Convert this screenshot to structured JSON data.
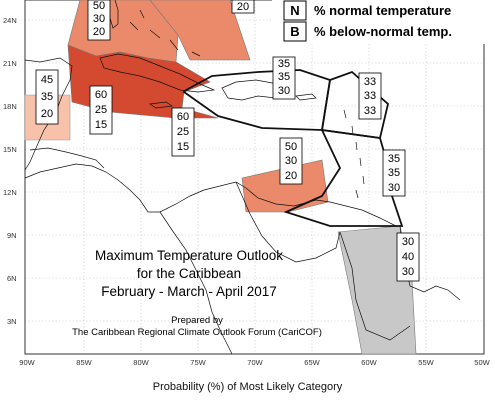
{
  "title": {
    "line1": "Maximum Temperature Outlook",
    "line2": "for the Caribbean",
    "line3": "February - March - April 2017"
  },
  "credit": {
    "line1": "Prepared by",
    "line2": "The Caribbean Regional Climate Outlook Forum (CariCOF)"
  },
  "footer_label": "Probability (%) of Most Likely Category",
  "legend": {
    "normal": {
      "key": "N",
      "text": "% normal temperature"
    },
    "below": {
      "key": "B",
      "text": "% below-normal temp."
    }
  },
  "latitude_labels": [
    "24N",
    "21N",
    "18N",
    "15N",
    "12N",
    "9N",
    "6N",
    "3N"
  ],
  "longitude_labels": [
    "90W",
    "85W",
    "80W",
    "75W",
    "70W",
    "65W",
    "60W",
    "55W",
    "50W"
  ],
  "colors": {
    "above_light": "#f7c2a9",
    "above_medium": "#ea8a6a",
    "above_strong": "#de6a4a",
    "above_darkest": "#d44a30",
    "normal_grey": "#c8c8c8",
    "outline": "#222222",
    "grid": "#bbbbbb"
  },
  "probability_boxes": [
    {
      "region": "central-america-north",
      "values": [
        "45",
        "35",
        "20"
      ]
    },
    {
      "region": "western-caribbean-cuba",
      "values": [
        "60",
        "25",
        "15"
      ]
    },
    {
      "region": "jamaica-channel",
      "values": [
        "60",
        "25",
        "15"
      ]
    },
    {
      "region": "bahamas",
      "values": [
        "50",
        "30",
        "20"
      ]
    },
    {
      "region": "turks-caicos",
      "values": [
        "20"
      ]
    },
    {
      "region": "greater-antilles-east",
      "values": [
        "35",
        "35",
        "30"
      ]
    },
    {
      "region": "leeward-islands",
      "values": [
        "33",
        "33",
        "33"
      ]
    },
    {
      "region": "windward-islands",
      "values": [
        "35",
        "35",
        "30"
      ]
    },
    {
      "region": "southern-caribbean",
      "values": [
        "50",
        "30",
        "20"
      ]
    },
    {
      "region": "guianas",
      "values": [
        "30",
        "40",
        "30"
      ]
    }
  ]
}
